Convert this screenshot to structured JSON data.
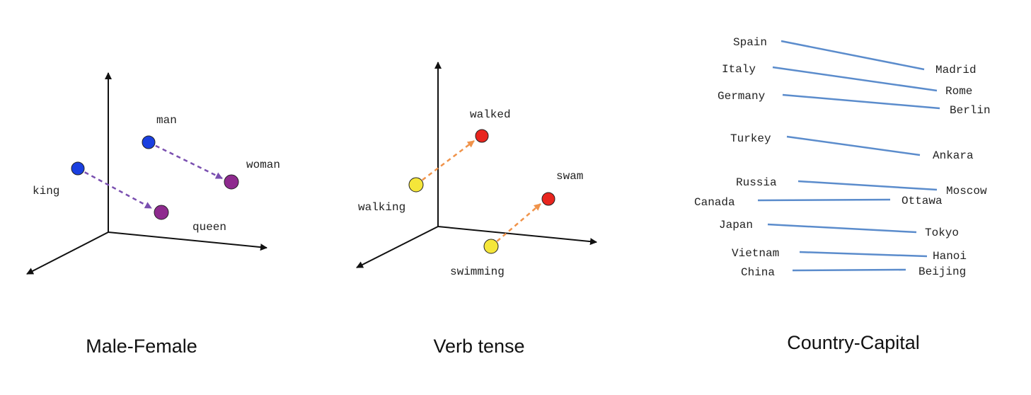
{
  "panels": [
    {
      "caption": "Male-Female",
      "words": [
        {
          "text": "man",
          "color": "#1a3fe0"
        },
        {
          "text": "woman",
          "color": "#8e2a8e"
        },
        {
          "text": "king",
          "color": "#1a3fe0"
        },
        {
          "text": "queen",
          "color": "#8e2a8e"
        }
      ],
      "arrow_color": "#7a4fb0"
    },
    {
      "caption": "Verb tense",
      "words": [
        {
          "text": "walked",
          "color": "#e8251e"
        },
        {
          "text": "walking",
          "color": "#f5e63a"
        },
        {
          "text": "swam",
          "color": "#e8251e"
        },
        {
          "text": "swimming",
          "color": "#f5e63a"
        }
      ],
      "arrow_color": "#f0934a"
    },
    {
      "caption": "Country-Capital",
      "line_color": "#5b8ccc",
      "pairs": [
        {
          "country": "Spain",
          "capital": "Madrid"
        },
        {
          "country": "Italy",
          "capital": "Rome"
        },
        {
          "country": "Germany",
          "capital": "Berlin"
        },
        {
          "country": "Turkey",
          "capital": "Ankara"
        },
        {
          "country": "Russia",
          "capital": "Moscow"
        },
        {
          "country": "Canada",
          "capital": "Ottawa"
        },
        {
          "country": "Japan",
          "capital": "Tokyo"
        },
        {
          "country": "Vietnam",
          "capital": "Hanoi"
        },
        {
          "country": "China",
          "capital": "Beijing"
        }
      ]
    }
  ]
}
